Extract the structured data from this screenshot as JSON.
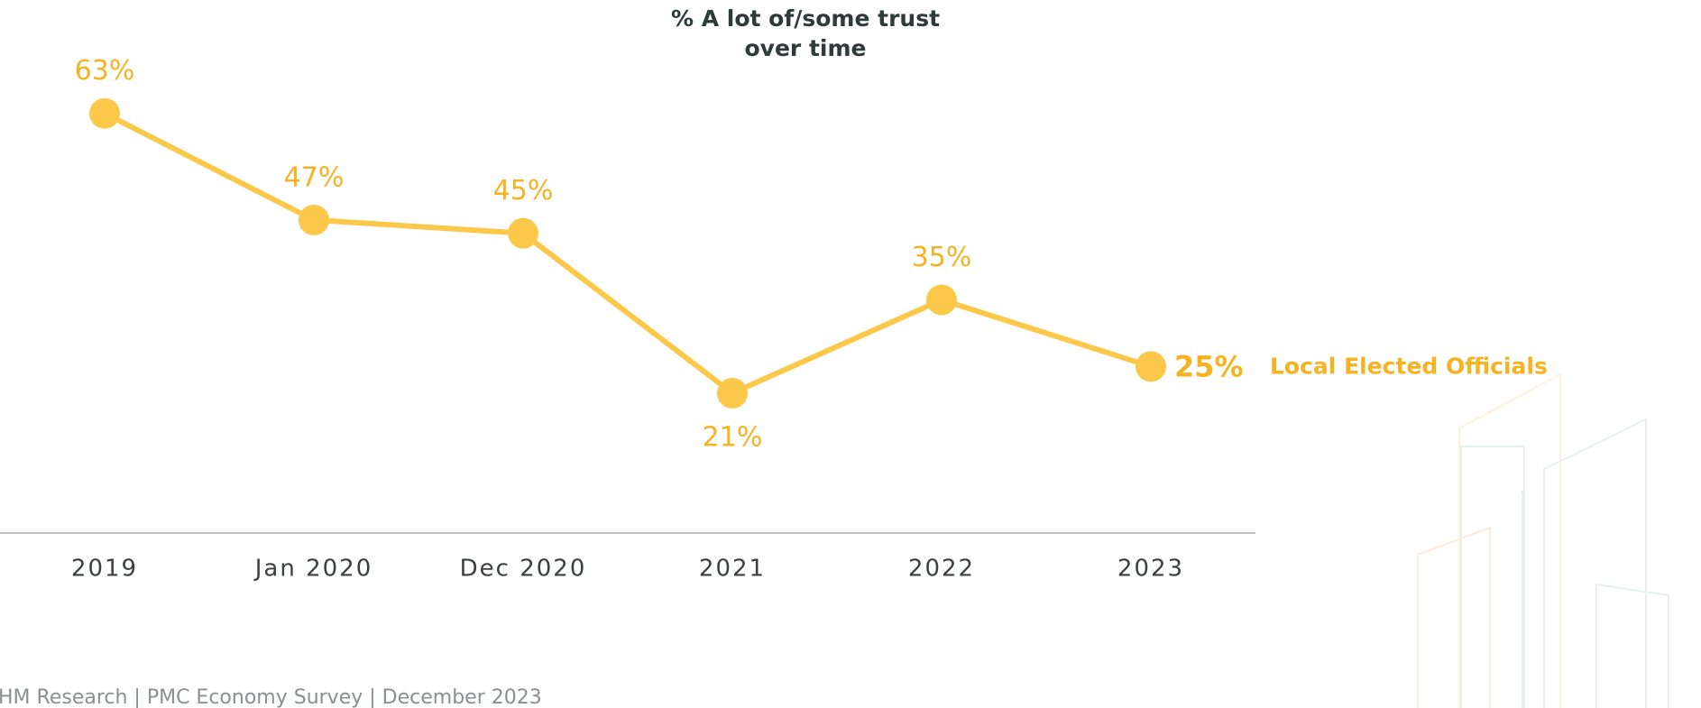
{
  "chart_data": {
    "type": "line",
    "title": "% A lot of/some trust over time",
    "categories": [
      "2019",
      "Jan 2020",
      "Dec 2020",
      "2021",
      "2022",
      "2023"
    ],
    "series": [
      {
        "name": "Local Elected Officials",
        "color": "#fcc84a",
        "values": [
          63,
          47,
          45,
          21,
          35,
          25
        ],
        "value_labels": [
          "63%",
          "47%",
          "45%",
          "21%",
          "35%",
          "25%"
        ]
      }
    ],
    "ylim": [
      0,
      70
    ],
    "source": "HM Research | PMC Economy Survey | December 2023"
  }
}
